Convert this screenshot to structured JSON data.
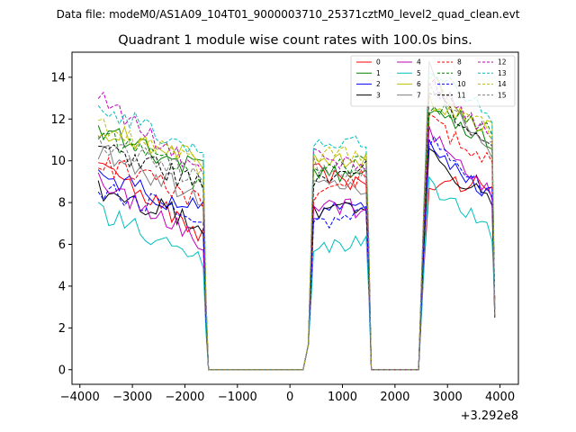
{
  "suptitle": "Data file: modeM0/AS1A09_104T01_9000003710_25371cztM0_level2_quad_clean.evt",
  "chart_data": {
    "type": "line",
    "title": "Quadrant 1 module wise count rates with 100.0s bins.",
    "xlabel": "",
    "ylabel": "",
    "offset_text": "+3.292e8",
    "xlim": [
      -4150,
      4350
    ],
    "ylim": [
      -0.7,
      15.2
    ],
    "xticks": [
      -4000,
      -3000,
      -2000,
      -1000,
      0,
      1000,
      2000,
      3000,
      4000
    ],
    "xtick_labels": [
      "−4000",
      "−3000",
      "−2000",
      "−1000",
      "0",
      "1000",
      "2000",
      "3000",
      "4000"
    ],
    "yticks": [
      0,
      2,
      4,
      6,
      8,
      10,
      12,
      14
    ],
    "ytick_labels": [
      "0",
      "2",
      "4",
      "6",
      "8",
      "10",
      "12",
      "14"
    ],
    "legend_position": "top-right",
    "segments": [
      [
        -3650,
        -1650
      ],
      [
        450,
        1450
      ],
      [
        2650,
        3850
      ]
    ],
    "gap_ranges": [
      [
        -1550,
        250
      ],
      [
        1550,
        2450
      ]
    ],
    "series": [
      {
        "name": "0",
        "color": "#ff0000",
        "dash": "solid",
        "seg_start": [
          9.8,
          9.5,
          8.8
        ],
        "seg_end": [
          6.3,
          8.7,
          9.0
        ]
      },
      {
        "name": "1",
        "color": "#008000",
        "dash": "solid",
        "seg_start": [
          11.5,
          9.6,
          12.3
        ],
        "seg_end": [
          9.5,
          9.2,
          11.0
        ]
      },
      {
        "name": "2",
        "color": "#0000ff",
        "dash": "solid",
        "seg_start": [
          9.3,
          7.5,
          11.0
        ],
        "seg_end": [
          7.5,
          8.0,
          8.0
        ]
      },
      {
        "name": "3",
        "color": "#000000",
        "dash": "solid",
        "seg_start": [
          8.7,
          7.5,
          10.5
        ],
        "seg_end": [
          7.0,
          7.8,
          7.8
        ]
      },
      {
        "name": "4",
        "color": "#bf00bf",
        "dash": "solid",
        "seg_start": [
          9.0,
          7.8,
          11.5
        ],
        "seg_end": [
          6.2,
          7.7,
          8.3
        ]
      },
      {
        "name": "5",
        "color": "#00bfbf",
        "dash": "solid",
        "seg_start": [
          7.5,
          5.9,
          9.0
        ],
        "seg_end": [
          5.3,
          6.2,
          6.5
        ]
      },
      {
        "name": "6",
        "color": "#bfbf00",
        "dash": "solid",
        "seg_start": [
          11.6,
          10.0,
          12.9
        ],
        "seg_end": [
          10.0,
          10.0,
          11.5
        ]
      },
      {
        "name": "7",
        "color": "#808080",
        "dash": "solid",
        "seg_start": [
          10.5,
          9.0,
          14.4
        ],
        "seg_end": [
          8.2,
          8.8,
          10.0
        ]
      },
      {
        "name": "8",
        "color": "#ff0000",
        "dash": "dashed",
        "seg_start": [
          10.0,
          8.3,
          11.8
        ],
        "seg_end": [
          8.0,
          9.3,
          10.0
        ]
      },
      {
        "name": "9",
        "color": "#008000",
        "dash": "dashed",
        "seg_start": [
          11.3,
          9.3,
          12.7
        ],
        "seg_end": [
          9.0,
          10.0,
          11.5
        ]
      },
      {
        "name": "10",
        "color": "#0000ff",
        "dash": "dashed",
        "seg_start": [
          8.7,
          7.0,
          11.0
        ],
        "seg_end": [
          7.3,
          7.6,
          8.3
        ]
      },
      {
        "name": "11",
        "color": "#000000",
        "dash": "dashed",
        "seg_start": [
          10.8,
          9.0,
          13.5
        ],
        "seg_end": [
          8.8,
          9.6,
          10.5
        ]
      },
      {
        "name": "12",
        "color": "#bf00bf",
        "dash": "dashed",
        "seg_start": [
          13.0,
          10.2,
          13.8
        ],
        "seg_end": [
          9.5,
          9.8,
          11.0
        ]
      },
      {
        "name": "13",
        "color": "#00bfbf",
        "dash": "dashed",
        "seg_start": [
          12.6,
          10.6,
          14.4
        ],
        "seg_end": [
          10.5,
          10.8,
          12.0
        ]
      },
      {
        "name": "14",
        "color": "#bfbf00",
        "dash": "dashed",
        "seg_start": [
          11.8,
          10.4,
          14.0
        ],
        "seg_end": [
          9.8,
          10.2,
          11.3
        ]
      },
      {
        "name": "15",
        "color": "#808080",
        "dash": "dashed",
        "seg_start": [
          11.0,
          9.8,
          13.7
        ],
        "seg_end": [
          9.0,
          9.5,
          10.6
        ]
      }
    ]
  }
}
